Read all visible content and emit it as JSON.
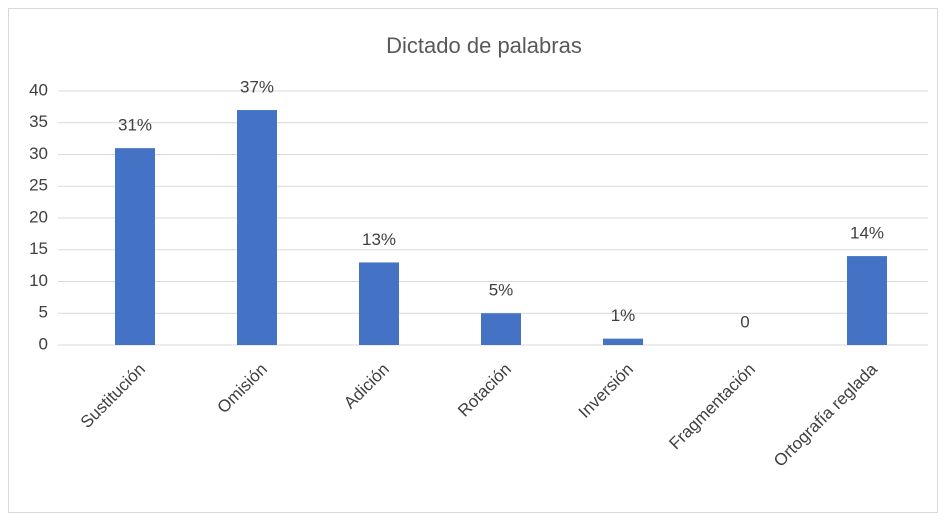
{
  "chart_data": {
    "type": "bar",
    "title": "Dictado de palabras",
    "categories": [
      "Sustitución",
      "Omisión",
      "Adición",
      "Rotación",
      "Inversión",
      "Fragmentación",
      "Ortografía reglada"
    ],
    "values": [
      31,
      37,
      13,
      5,
      1,
      0,
      14
    ],
    "value_labels": [
      "31%",
      "37%",
      "13%",
      "5%",
      "1%",
      "0",
      "14%"
    ],
    "color": "#4472c4",
    "ylim": [
      0,
      40
    ],
    "yticks": [
      0,
      5,
      10,
      15,
      20,
      25,
      30,
      35,
      40
    ],
    "grid": true
  }
}
